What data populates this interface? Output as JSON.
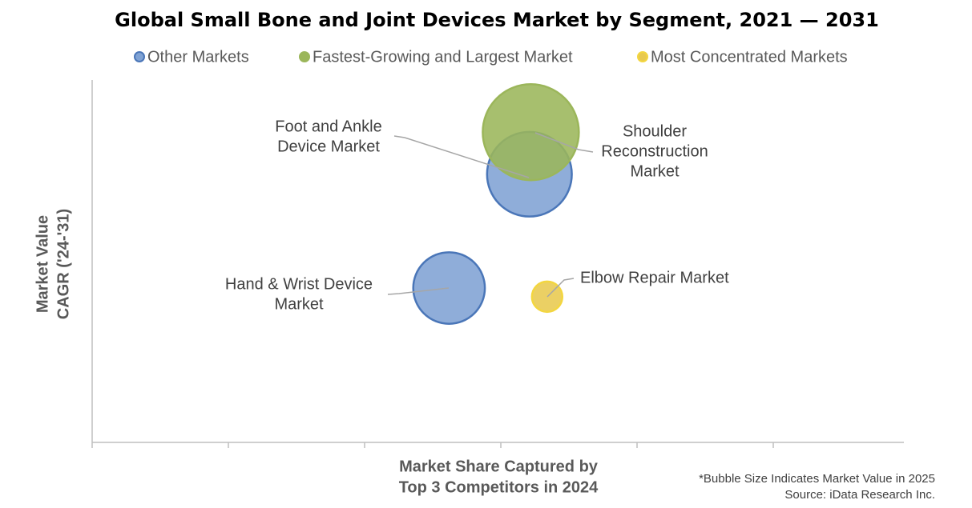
{
  "chart_data": {
    "type": "bubble",
    "title": "Global Small Bone and Joint Devices Market by Segment, 2021 — 2031",
    "x_title": [
      "Market Share Captured by",
      "Top 3 Competitors in 2024"
    ],
    "y_title": [
      "Market Value",
      "CAGR ('24-'31)"
    ],
    "notes": [
      "*Bubble Size Indicates Market Value in 2025",
      "Source: iData Research Inc."
    ],
    "xlim": [
      0,
      6
    ],
    "xticks": [
      0,
      1,
      2,
      3,
      4,
      5
    ],
    "ylim": [
      0,
      10
    ],
    "series": [
      {
        "name": "Other Markets",
        "color": "#7fa2d4",
        "edge": "#4a76b8",
        "x": [
          3.21,
          2.62
        ],
        "values": [
          7.4,
          4.26
        ],
        "sizes": [
          2.8,
          2.0
        ],
        "labels": [
          [
            "Foot and Ankle",
            "Device Market"
          ],
          [
            "Hand & Wrist Device",
            "Market"
          ]
        ]
      },
      {
        "name": "Fastest-Growing and Largest Market",
        "color": "#9bb65a",
        "edge": "#9bb65a",
        "x": [
          3.22
        ],
        "values": [
          8.56
        ],
        "sizes": [
          3.6
        ],
        "labels": [
          [
            "Shoulder",
            "Reconstruction",
            "Market"
          ]
        ]
      },
      {
        "name": "Most Concentrated Markets",
        "color": "#e8c94f",
        "edge": "#f3d640",
        "x": [
          3.34
        ],
        "values": [
          4.02
        ],
        "sizes": [
          0.36
        ],
        "labels": [
          [
            "Elbow Repair Market"
          ]
        ]
      }
    ]
  }
}
